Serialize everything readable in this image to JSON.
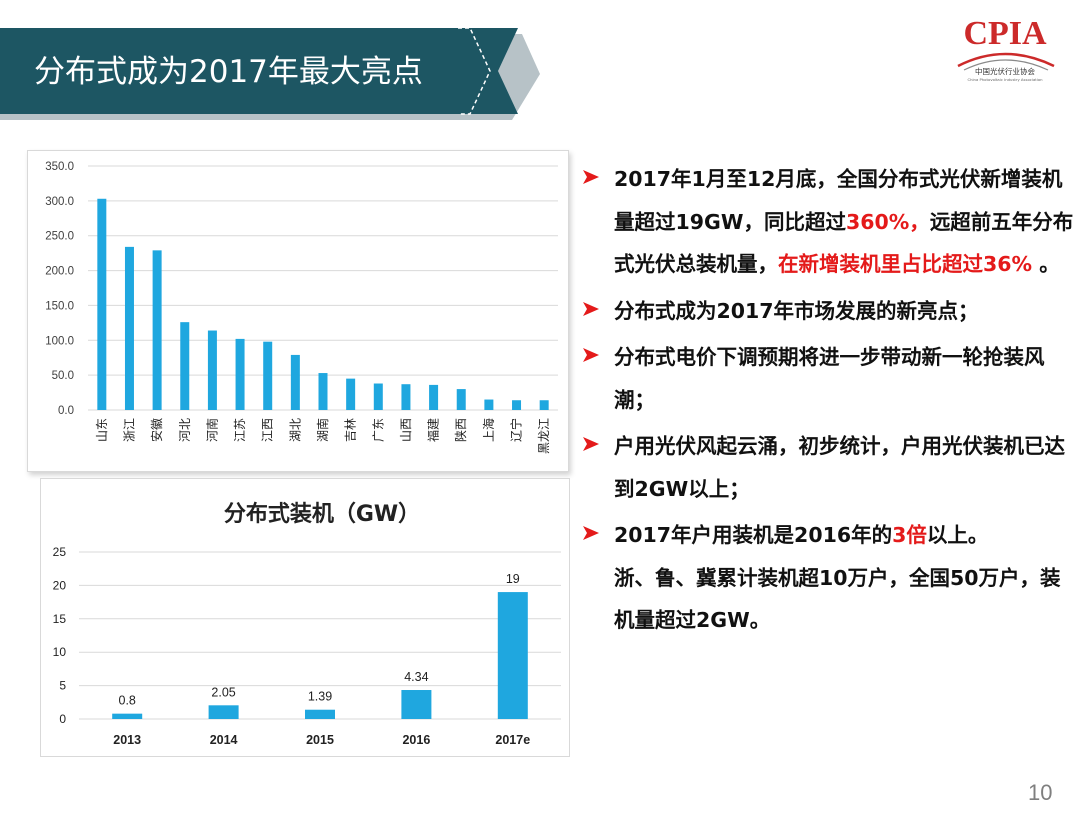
{
  "slide": {
    "title": "分布式成为2017年最大亮点",
    "page_number": "10",
    "colors": {
      "banner": "#1d5663",
      "accent_red": "#e41a1a",
      "bar_blue": "#1fa7df",
      "logo_red": "#cc2a2a"
    }
  },
  "logo": {
    "mark": "CPIA",
    "name_cn": "中国光伏行业协会",
    "name_en": "China Photovoltaic Industry Association"
  },
  "chart_data": [
    {
      "type": "bar",
      "title": "",
      "categories": [
        "山东",
        "浙江",
        "安徽",
        "河北",
        "河南",
        "江苏",
        "江西",
        "湖北",
        "湖南",
        "吉林",
        "广东",
        "山西",
        "福建",
        "陕西",
        "上海",
        "辽宁",
        "黑龙江"
      ],
      "values": [
        303,
        234,
        229,
        126,
        114,
        102,
        98,
        79,
        53,
        45,
        38,
        37,
        36,
        30,
        15,
        14,
        14
      ],
      "ylim": [
        0,
        350
      ],
      "yticks": [
        "0.0",
        "50.0",
        "100.0",
        "150.0",
        "200.0",
        "250.0",
        "300.0",
        "350.0"
      ],
      "xlabel": "",
      "ylabel": "",
      "grid": true,
      "legend": "none"
    },
    {
      "type": "bar",
      "title": "分布式装机（GW）",
      "categories": [
        "2013",
        "2014",
        "2015",
        "2016",
        "2017e"
      ],
      "values": [
        0.8,
        2.05,
        1.39,
        4.34,
        19
      ],
      "value_labels": [
        "0.8",
        "2.05",
        "1.39",
        "4.34",
        "19"
      ],
      "ylim": [
        0,
        25
      ],
      "yticks": [
        "0",
        "5",
        "10",
        "15",
        "20",
        "25"
      ],
      "xlabel": "",
      "ylabel": "",
      "grid": true,
      "legend": "none"
    }
  ],
  "bullets": [
    {
      "icon": "arrow-right-icon",
      "runs": [
        {
          "text": "2017年1月至12月底，全国分布式光伏新增装机量超过19GW，同比超过",
          "color": "normal"
        },
        {
          "text": "360%，",
          "color": "red"
        },
        {
          "text": "远超前五年分布式光伏总装机量，",
          "color": "normal"
        },
        {
          "text": "在新增装机里占比超过36%",
          "color": "red"
        },
        {
          "text": " 。",
          "color": "normal"
        }
      ]
    },
    {
      "icon": "arrow-right-icon",
      "runs": [
        {
          "text": "分布式成为2017年市场发展的新亮点；",
          "color": "normal"
        }
      ]
    },
    {
      "icon": "arrow-right-icon",
      "runs": [
        {
          "text": "分布式电价下调预期将进一步带动新一轮抢装风潮；",
          "color": "normal"
        }
      ]
    },
    {
      "icon": "arrow-right-icon",
      "runs": [
        {
          "text": "户用光伏风起云涌，初步统计，户用光伏装机已达到2GW以上；",
          "color": "normal"
        }
      ]
    },
    {
      "icon": "arrow-right-icon",
      "runs": [
        {
          "text": "2017年户用装机是2016年的",
          "color": "normal"
        },
        {
          "text": "3倍",
          "color": "red"
        },
        {
          "text": "以上。",
          "color": "normal"
        }
      ]
    }
  ],
  "note": {
    "runs": [
      {
        "text": "浙、鲁、冀累计装机超10万户，全国50万户，装机量超过2GW。",
        "color": "normal"
      }
    ]
  }
}
